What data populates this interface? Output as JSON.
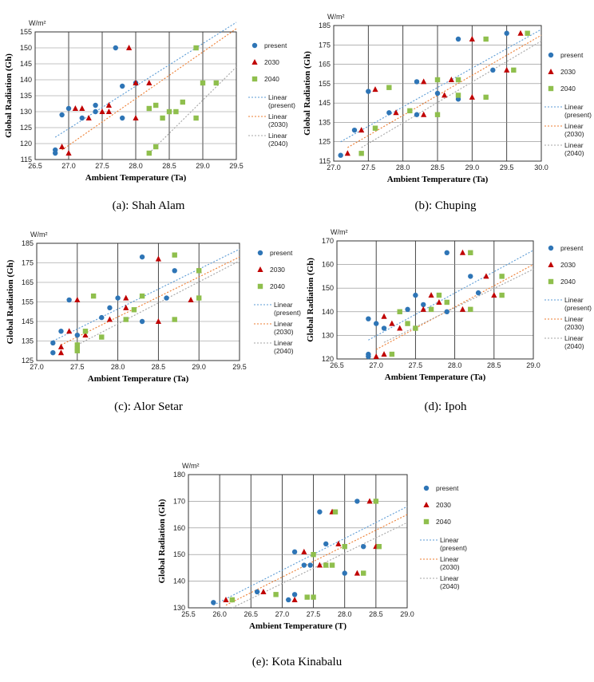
{
  "colors": {
    "present": "#2e75b6",
    "2030": "#c00000",
    "2040": "#8fbf4d",
    "lin_present": "#5b9bd5",
    "lin_2030": "#ed7d31",
    "lin_2040": "#a5a5a5"
  },
  "legend": {
    "present": "present",
    "y2030": "2030",
    "y2040": "2040",
    "lin_present": [
      "Linear",
      "(present)"
    ],
    "lin_2030": [
      "Linear",
      "(2030)"
    ],
    "lin_2040": [
      "Linear",
      "(2040)"
    ]
  },
  "chart_data": [
    {
      "type": "scatter",
      "caption": "(a): Shah Alam",
      "ylabel": "Global Radiation (Gh)",
      "xlabel": "Ambient Temperature (Ta)",
      "unit": "W/m²",
      "xlim": [
        26.5,
        29.5
      ],
      "ylim": [
        115,
        155
      ],
      "xticks": [
        "26.5",
        "27.0",
        "27.5",
        "28.0",
        "28.5",
        "29.0",
        "29.5"
      ],
      "yticks": [
        "115",
        "120",
        "125",
        "130",
        "135",
        "140",
        "145",
        "150",
        "155"
      ],
      "series": [
        {
          "name": "present",
          "x": [
            26.8,
            26.8,
            26.9,
            27.0,
            27.2,
            27.4,
            27.4,
            27.7,
            27.8,
            27.8,
            28.0
          ],
          "y": [
            118,
            117,
            129,
            131,
            128,
            130,
            132,
            150,
            138,
            128,
            139
          ]
        },
        {
          "name": "2030",
          "x": [
            26.9,
            27.0,
            27.1,
            27.2,
            27.3,
            27.5,
            27.6,
            27.6,
            27.9,
            28.0,
            28.0,
            28.2
          ],
          "y": [
            119,
            117,
            131,
            131,
            128,
            130,
            132,
            130,
            150,
            139,
            128,
            139
          ]
        },
        {
          "name": "2040",
          "x": [
            28.2,
            28.2,
            28.3,
            28.3,
            28.4,
            28.5,
            28.6,
            28.7,
            28.9,
            28.9,
            29.0,
            29.2
          ],
          "y": [
            117,
            131,
            119,
            132,
            128,
            130,
            130,
            133,
            150,
            128,
            139,
            139
          ]
        }
      ],
      "trend": [
        {
          "name": "Linear (present)",
          "x": [
            26.8,
            29.5
          ],
          "y": [
            122,
            158
          ]
        },
        {
          "name": "Linear (2030)",
          "x": [
            26.9,
            29.5
          ],
          "y": [
            118,
            156
          ]
        },
        {
          "name": "Linear (2040)",
          "x": [
            28.2,
            29.5
          ],
          "y": [
            117,
            144
          ]
        }
      ]
    },
    {
      "type": "scatter",
      "caption": "(b): Chuping",
      "ylabel": "Global Radiation (Gh)",
      "xlabel": "Ambient Temperature (Ta)",
      "unit": "W/m²",
      "xlim": [
        27.0,
        30.0
      ],
      "ylim": [
        115,
        185
      ],
      "xticks": [
        "27.0",
        "27.5",
        "28.0",
        "28.5",
        "29.0",
        "29.5",
        "30.0"
      ],
      "yticks": [
        "115",
        "125",
        "135",
        "145",
        "155",
        "165",
        "175",
        "185"
      ],
      "series": [
        {
          "name": "present",
          "x": [
            27.1,
            27.3,
            27.5,
            27.8,
            28.2,
            28.2,
            28.5,
            28.8,
            28.8,
            29.3,
            29.5
          ],
          "y": [
            118,
            131,
            151,
            140,
            156,
            139,
            150,
            178,
            147,
            162,
            181
          ]
        },
        {
          "name": "2030",
          "x": [
            27.2,
            27.4,
            27.6,
            27.9,
            28.3,
            28.3,
            28.6,
            28.7,
            29.0,
            29.0,
            29.5,
            29.7
          ],
          "y": [
            119,
            131,
            152,
            140,
            156,
            139,
            149,
            157,
            178,
            148,
            162,
            181
          ]
        },
        {
          "name": "2040",
          "x": [
            27.4,
            27.6,
            27.8,
            28.1,
            28.5,
            28.5,
            28.8,
            28.8,
            29.2,
            29.2,
            29.6,
            29.8
          ],
          "y": [
            119,
            132,
            153,
            141,
            157,
            139,
            149,
            157,
            178,
            148,
            162,
            181
          ]
        }
      ],
      "trend": [
        {
          "name": "Linear (present)",
          "x": [
            27.1,
            30.0
          ],
          "y": [
            125,
            183
          ]
        },
        {
          "name": "Linear (2030)",
          "x": [
            27.2,
            30.0
          ],
          "y": [
            122,
            180
          ]
        },
        {
          "name": "Linear (2040)",
          "x": [
            27.4,
            30.0
          ],
          "y": [
            122,
            177
          ]
        }
      ]
    },
    {
      "type": "scatter",
      "caption": "(c): Alor Setar",
      "ylabel": "Global Radiation (Gh)",
      "xlabel": "Ambient Temperature (Ta)",
      "unit": "W/m²",
      "xlim": [
        27.0,
        29.5
      ],
      "ylim": [
        125,
        185
      ],
      "xticks": [
        "27.0",
        "27.5",
        "28.0",
        "28.5",
        "29.0",
        "29.5"
      ],
      "yticks": [
        "125",
        "135",
        "145",
        "155",
        "165",
        "175",
        "185"
      ],
      "series": [
        {
          "name": "present",
          "x": [
            27.2,
            27.2,
            27.3,
            27.4,
            27.5,
            27.8,
            27.9,
            28.0,
            28.3,
            28.3,
            28.6,
            28.7
          ],
          "y": [
            134,
            129,
            140,
            156,
            138,
            147,
            152,
            157,
            178,
            145,
            157,
            171
          ]
        },
        {
          "name": "2030",
          "x": [
            27.3,
            27.3,
            27.4,
            27.5,
            27.6,
            27.9,
            28.1,
            28.1,
            28.5,
            28.5,
            28.9,
            29.0
          ],
          "y": [
            132,
            129,
            140,
            156,
            138,
            146,
            152,
            157,
            177,
            145,
            156,
            171
          ]
        },
        {
          "name": "2040",
          "x": [
            27.5,
            27.5,
            27.5,
            27.6,
            27.7,
            27.8,
            28.1,
            28.2,
            28.3,
            28.7,
            28.7,
            29.0,
            29.0
          ],
          "y": [
            133,
            131,
            130,
            140,
            158,
            137,
            146,
            151,
            158,
            179,
            146,
            157,
            171
          ]
        }
      ],
      "trend": [
        {
          "name": "Linear (present)",
          "x": [
            27.2,
            29.5
          ],
          "y": [
            135,
            182
          ]
        },
        {
          "name": "Linear (2030)",
          "x": [
            27.3,
            29.5
          ],
          "y": [
            133,
            178
          ]
        },
        {
          "name": "Linear (2040)",
          "x": [
            27.5,
            29.5
          ],
          "y": [
            133,
            176
          ]
        }
      ]
    },
    {
      "type": "scatter",
      "caption": "(d): Ipoh",
      "ylabel": "Global Radiation (Gh)",
      "xlabel": "Ambient Temperature (Ta)",
      "unit": "W/m²",
      "xlim": [
        26.5,
        29.0
      ],
      "ylim": [
        120,
        170
      ],
      "xticks": [
        "26.5",
        "27.0",
        "27.5",
        "28.0",
        "28.5",
        "29.0"
      ],
      "yticks": [
        "120",
        "130",
        "140",
        "150",
        "160",
        "170"
      ],
      "series": [
        {
          "name": "present",
          "x": [
            26.9,
            26.9,
            26.9,
            27.0,
            27.1,
            27.4,
            27.5,
            27.6,
            27.9,
            27.9,
            28.2,
            28.3
          ],
          "y": [
            137,
            122,
            121,
            135,
            133,
            141,
            147,
            143,
            165,
            140,
            155,
            148
          ]
        },
        {
          "name": "2030",
          "x": [
            27.0,
            27.1,
            27.1,
            27.2,
            27.3,
            27.6,
            27.7,
            27.8,
            28.1,
            28.1,
            28.4,
            28.5
          ],
          "y": [
            121,
            122,
            138,
            135,
            133,
            141,
            147,
            144,
            165,
            141,
            155,
            147
          ]
        },
        {
          "name": "2040",
          "x": [
            27.2,
            27.3,
            27.4,
            27.5,
            27.7,
            27.8,
            27.9,
            28.2,
            28.2,
            28.6,
            28.6
          ],
          "y": [
            122,
            140,
            135,
            133,
            141,
            147,
            144,
            165,
            141,
            155,
            147
          ]
        }
      ],
      "trend": [
        {
          "name": "Linear (present)",
          "x": [
            26.9,
            29.0
          ],
          "y": [
            128,
            166
          ]
        },
        {
          "name": "Linear (2030)",
          "x": [
            27.0,
            29.0
          ],
          "y": [
            124,
            160
          ]
        },
        {
          "name": "Linear (2040)",
          "x": [
            27.1,
            29.0
          ],
          "y": [
            127,
            158
          ]
        }
      ]
    },
    {
      "type": "scatter",
      "caption": "(e): Kota Kinabalu",
      "ylabel": "Global Radiation (Gh)",
      "xlabel": "Ambient Temperature (T)",
      "unit": "W/m²",
      "xlim": [
        25.5,
        29.0
      ],
      "ylim": [
        130,
        180
      ],
      "xticks": [
        "25.5",
        "26.0",
        "26.5",
        "27.0",
        "27.5",
        "28.0",
        "28.5",
        "29.0"
      ],
      "yticks": [
        "130",
        "140",
        "150",
        "160",
        "170",
        "180"
      ],
      "series": [
        {
          "name": "present",
          "x": [
            25.9,
            26.6,
            27.1,
            27.2,
            27.2,
            27.35,
            27.45,
            27.6,
            27.7,
            28.0,
            28.2,
            28.3
          ],
          "y": [
            132,
            136,
            133,
            135,
            151,
            146,
            146,
            166,
            154,
            143,
            170,
            153
          ]
        },
        {
          "name": "2030",
          "x": [
            26.1,
            26.7,
            27.2,
            27.35,
            27.6,
            27.7,
            27.8,
            27.9,
            28.2,
            28.4,
            28.5
          ],
          "y": [
            133,
            136,
            133,
            151,
            146,
            146,
            166,
            154,
            143,
            170,
            153
          ]
        },
        {
          "name": "2040",
          "x": [
            26.2,
            26.9,
            27.4,
            27.5,
            27.5,
            27.7,
            27.8,
            27.85,
            28.0,
            28.3,
            28.5,
            28.55
          ],
          "y": [
            133,
            135,
            134,
            134,
            150,
            146,
            146,
            166,
            153,
            143,
            170,
            153
          ]
        }
      ],
      "trend": [
        {
          "name": "Linear (present)",
          "x": [
            25.9,
            29.0
          ],
          "y": [
            131,
            168
          ]
        },
        {
          "name": "Linear (2030)",
          "x": [
            26.1,
            29.0
          ],
          "y": [
            131,
            165
          ]
        },
        {
          "name": "Linear (2040)",
          "x": [
            26.2,
            29.0
          ],
          "y": [
            130,
            162
          ]
        }
      ]
    }
  ]
}
